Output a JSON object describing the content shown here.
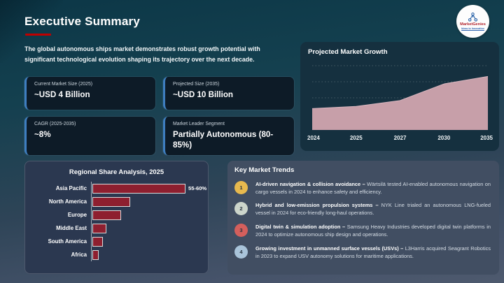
{
  "header": {
    "title": "Executive Summary",
    "underline_color": "#c00000",
    "logo": {
      "brand": "MarketGenies",
      "tagline": "Ideas to Innovation"
    }
  },
  "intro": "The global autonomous ships market demonstrates robust growth potential with significant technological evolution shaping its trajectory over the next decade.",
  "stat_cards": [
    {
      "label": "Current Market Size (2025)",
      "value": "~USD 4 Billion"
    },
    {
      "label": "Projected Size (2035)",
      "value": "~USD 10 Billion"
    },
    {
      "label": "CAGR (2025-2035)",
      "value": "~8%"
    },
    {
      "label": "Market Leader Segment",
      "value": "Partially Autonomous (80-85%)"
    }
  ],
  "chart_data": [
    {
      "type": "area",
      "title": "Projected Market Growth",
      "x": [
        "2024",
        "2025",
        "2027",
        "2030",
        "2035"
      ],
      "values": [
        4,
        4.4,
        5.5,
        8.6,
        10
      ],
      "ylim": [
        0,
        12
      ],
      "unit": "USD Billion",
      "fill_color": "#c79fa9",
      "stroke_color": "#d9b6bf",
      "grid": "dotted-horizontal",
      "gridline_values": [
        3,
        6,
        9,
        12
      ]
    },
    {
      "type": "bar",
      "orientation": "horizontal",
      "title": "Regional Share Analysis, 2025",
      "categories": [
        "Asia Pacific",
        "North America",
        "Europe",
        "Middle East",
        "South America",
        "Africa"
      ],
      "values": [
        57.5,
        23,
        17,
        8,
        5.5,
        3
      ],
      "data_labels": [
        "55-60%",
        "",
        "",
        "",
        "",
        ""
      ],
      "xlim": [
        0,
        57.5
      ],
      "bar_color": "#8e1f2f"
    }
  ],
  "trends": {
    "title": "Key Market Trends",
    "items": [
      {
        "num": "1",
        "badge_color": "#e8b94e",
        "lead": "AI-driven navigation & collision avoidance –",
        "desc": "Wärtsilä tested AI-enabled autonomous navigation on cargo vessels in 2024 to enhance safety and efficiency."
      },
      {
        "num": "2",
        "badge_color": "#ccd5cb",
        "lead": "Hybrid and low-emission propulsion systems –",
        "desc": "NYK Line trialed an autonomous LNG-fueled vessel in 2024 for eco-friendly long-haul operations."
      },
      {
        "num": "3",
        "badge_color": "#d45f5c",
        "lead": "Digital twin & simulation adoption –",
        "desc": "Samsung Heavy Industries developed digital twin platforms in 2024 to optimize autonomous ship design and operations."
      },
      {
        "num": "4",
        "badge_color": "#a9c4da",
        "lead": "Growing investment in unmanned surface vessels (USVs) –",
        "desc": "L3Harris acquired Seagrant Robotics in 2023 to expand USV autonomy solutions for maritime applications."
      }
    ]
  }
}
